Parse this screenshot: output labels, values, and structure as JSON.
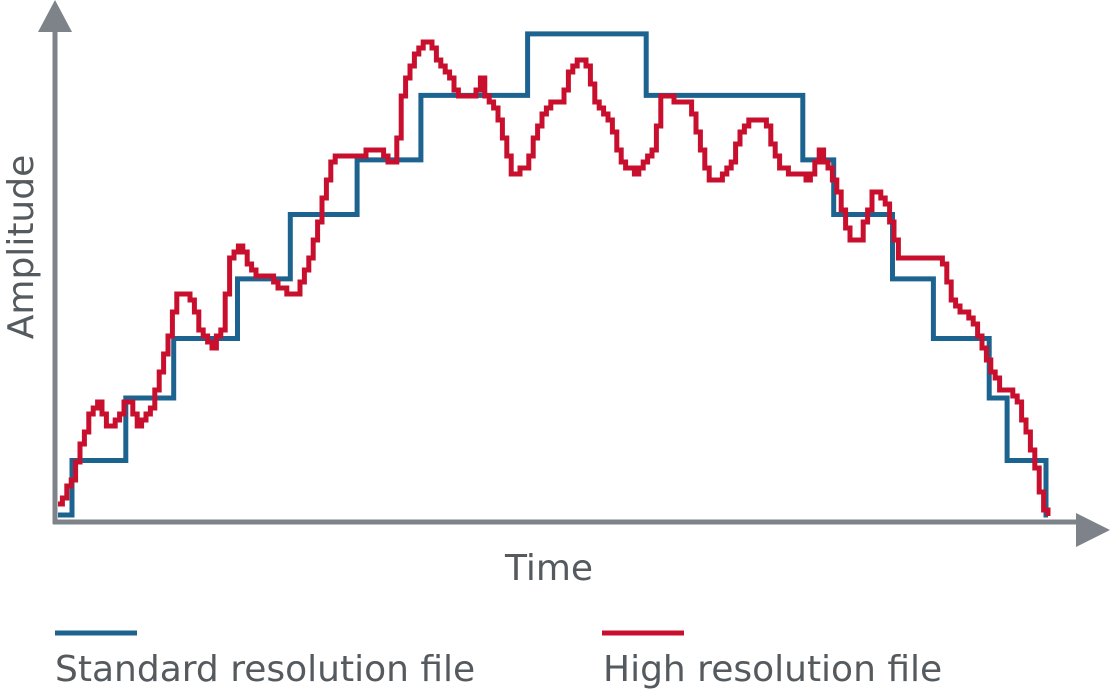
{
  "chart_data": {
    "type": "line",
    "xlabel": "Time",
    "ylabel": "Amplitude",
    "xlim": [
      0,
      1000
    ],
    "ylim": [
      0,
      500
    ],
    "grid": false,
    "legend_position": "bottom",
    "colors": {
      "axis": "#7e8389",
      "text": "#555a5f"
    },
    "series": [
      {
        "name": "Standard resolution file",
        "color": "#1d6390",
        "step": true,
        "x": [
          0,
          14,
          68,
          116,
          180,
          233,
          300,
          364,
          471,
          536,
          590,
          747,
          778,
          837,
          878,
          934,
          952,
          991,
          993
        ],
        "y": [
          5,
          60,
          123,
          183,
          243,
          308,
          363,
          428,
          490,
          490,
          428,
          363,
          308,
          243,
          183,
          123,
          60,
          5,
          5
        ]
      },
      {
        "name": "High resolution file",
        "color": "#c8102e",
        "step": false,
        "x": [
          0,
          15,
          31,
          40,
          48,
          60,
          69,
          78,
          92,
          105,
          119,
          132,
          143,
          155,
          163,
          172,
          182,
          197,
          212,
          226,
          240,
          254,
          265,
          275,
          289,
          303,
          316,
          329,
          337,
          345,
          356,
          370,
          386,
          404,
          416,
          424,
          430,
          438,
          454,
          469,
          484,
          494,
          503,
          512,
          521,
          529,
          539,
          553,
          564,
          577,
          587,
          597,
          604,
          611,
          619,
          630,
          640,
          653,
          664,
          675,
          686,
          698,
          710,
          721,
          732,
          743,
          753,
          763,
          779,
          792,
          804,
          816,
          828,
          843,
          860,
          874,
          886,
          898,
          912,
          927,
          942,
          960,
          976,
          990,
          993
        ],
        "y": [
          15,
          45,
          110,
          122,
          95,
          100,
          125,
          96,
          108,
          165,
          225,
          225,
          185,
          175,
          192,
          265,
          275,
          245,
          245,
          230,
          230,
          270,
          325,
          365,
          365,
          365,
          378,
          362,
          362,
          432,
          470,
          483,
          455,
          425,
          425,
          445,
          420,
          418,
          350,
          355,
          410,
          420,
          420,
          450,
          462,
          462,
          418,
          400,
          360,
          350,
          360,
          375,
          425,
          428,
          420,
          425,
          392,
          340,
          342,
          360,
          398,
          402,
          400,
          360,
          348,
          350,
          342,
          372,
          340,
          285,
          285,
          330,
          325,
          262,
          262,
          265,
          260,
          215,
          210,
          175,
          135,
          125,
          70,
          3,
          3
        ]
      }
    ]
  }
}
